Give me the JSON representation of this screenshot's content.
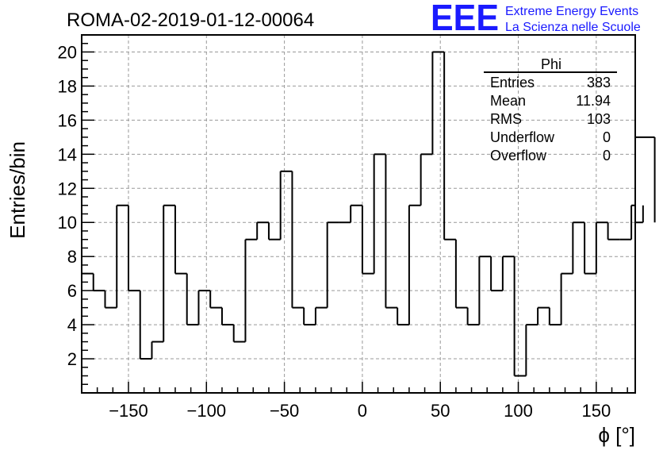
{
  "header": {
    "run_title": "ROMA-02-2019-01-12-00064",
    "logo_text": "EEE",
    "logo_line1": "Extreme Energy Events",
    "logo_line2": "La Scienza nelle Scuole",
    "logo_color": "#1a1aff"
  },
  "stats": {
    "title": "Phi",
    "rows": [
      {
        "label": "Entries",
        "value": "383"
      },
      {
        "label": "Mean",
        "value": "11.94"
      },
      {
        "label": "RMS",
        "value": "103"
      },
      {
        "label": "Underflow",
        "value": "0"
      },
      {
        "label": "Overflow",
        "value": "0"
      }
    ]
  },
  "chart_data": {
    "type": "histogram",
    "xlabel": "ϕ [°]",
    "ylabel": "Entries/bin",
    "xlim": [
      -180,
      175
    ],
    "ylim": [
      0,
      21
    ],
    "bin_width": 7.5,
    "bin_start": -180,
    "values": [
      7,
      6,
      5,
      11,
      6,
      2,
      3,
      11,
      7,
      4,
      6,
      5,
      4,
      3,
      9,
      10,
      9,
      13,
      5,
      4,
      5,
      10,
      10,
      11,
      7,
      14,
      5,
      4,
      11,
      14,
      20,
      9,
      5,
      4,
      8,
      6,
      8,
      1,
      4,
      5,
      4,
      7,
      10,
      7,
      10,
      9,
      9,
      11,
      10,
      15
    ],
    "x_ticks": [
      -150,
      -100,
      -50,
      0,
      50,
      100,
      150
    ],
    "x_tick_labels": [
      "−150",
      "−100",
      "−50",
      "0",
      "50",
      "100",
      "150"
    ],
    "y_ticks": [
      2,
      4,
      6,
      8,
      10,
      12,
      14,
      16,
      18,
      20
    ],
    "y_tick_labels": [
      "2",
      "4",
      "6",
      "8",
      "10",
      "12",
      "14",
      "16",
      "18",
      "20"
    ],
    "grid": true
  }
}
